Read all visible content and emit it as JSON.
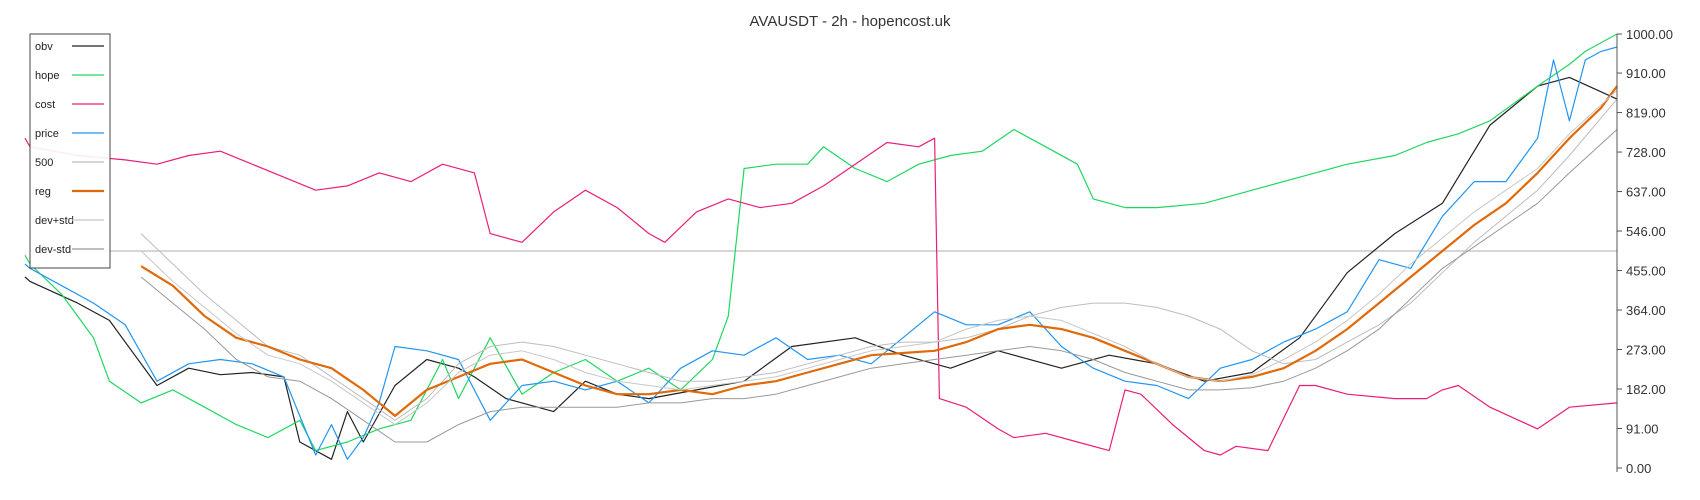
{
  "chart_data": {
    "type": "line",
    "title": "AVAUSDT - 2h - hopencost.uk",
    "y_axis": {
      "position": "right",
      "ylim": [
        0,
        1000
      ],
      "ticks": [
        0,
        91,
        182,
        273,
        364,
        455,
        546,
        637,
        728,
        819,
        910,
        1000
      ],
      "tick_labels": [
        "0.00",
        "91.00",
        "182.00",
        "273.00",
        "364.00",
        "455.00",
        "546.00",
        "637.00",
        "728.00",
        "819.00",
        "910.00",
        "1000.00"
      ]
    },
    "xlim": [
      0,
      100
    ],
    "reference_line": {
      "y": 500,
      "color": "#bdbdbd"
    },
    "legend": {
      "placement": "top-left"
    },
    "series": [
      {
        "name": "obv",
        "color": "#222222",
        "width": 1.2,
        "x": [
          -2,
          0,
          3,
          5,
          8,
          10,
          12,
          14,
          16,
          17,
          19,
          20,
          21,
          23,
          25,
          27,
          28,
          30,
          33,
          35,
          37,
          39,
          42,
          45,
          48,
          52,
          55,
          58,
          61,
          65,
          68,
          71,
          74,
          77,
          80,
          83,
          86,
          89,
          92,
          95,
          97,
          100
        ],
        "y": [
          440,
          430,
          380,
          340,
          190,
          230,
          215,
          220,
          210,
          60,
          20,
          130,
          60,
          190,
          250,
          230,
          210,
          160,
          130,
          200,
          170,
          160,
          180,
          200,
          280,
          300,
          260,
          230,
          270,
          230,
          260,
          240,
          200,
          220,
          300,
          450,
          540,
          610,
          790,
          880,
          900,
          850
        ]
      },
      {
        "name": "hope",
        "color": "#1ed760",
        "width": 1.2,
        "x": [
          -2,
          0,
          2,
          4,
          5,
          7,
          9,
          11,
          13,
          15,
          17,
          18,
          20,
          22,
          24,
          26,
          27,
          29,
          31,
          33,
          35,
          37,
          39,
          41,
          43,
          44,
          45,
          47,
          49,
          50,
          52,
          54,
          56,
          58,
          60,
          62,
          64,
          66,
          67,
          69,
          71,
          74,
          77,
          80,
          83,
          86,
          88,
          90,
          92,
          95,
          97,
          98,
          100
        ],
        "y": [
          490,
          470,
          400,
          300,
          200,
          150,
          180,
          140,
          100,
          70,
          110,
          40,
          60,
          90,
          110,
          250,
          160,
          300,
          170,
          220,
          250,
          200,
          230,
          180,
          250,
          350,
          690,
          700,
          700,
          740,
          690,
          660,
          700,
          720,
          730,
          780,
          740,
          700,
          620,
          600,
          600,
          610,
          640,
          670,
          700,
          720,
          750,
          770,
          800,
          880,
          930,
          960,
          1000
        ]
      },
      {
        "name": "cost",
        "color": "#e91e7a",
        "width": 1.2,
        "x": [
          -2,
          0,
          3,
          6,
          8,
          10,
          12,
          14,
          16,
          18,
          20,
          22,
          24,
          26,
          28,
          29,
          31,
          33,
          35,
          37,
          39,
          40,
          42,
          44,
          46,
          48,
          50,
          52,
          54,
          56,
          57,
          57.3,
          59,
          61,
          62,
          64,
          66,
          68,
          69,
          70,
          72,
          74,
          75,
          76,
          78,
          80,
          81,
          83,
          86,
          88,
          89,
          90,
          92,
          95,
          97,
          100
        ],
        "y": [
          760,
          740,
          720,
          710,
          700,
          720,
          730,
          700,
          670,
          640,
          650,
          680,
          660,
          700,
          680,
          540,
          520,
          590,
          640,
          600,
          540,
          520,
          590,
          620,
          600,
          610,
          650,
          700,
          750,
          740,
          760,
          160,
          140,
          90,
          70,
          80,
          60,
          40,
          180,
          170,
          100,
          40,
          30,
          50,
          40,
          190,
          190,
          170,
          160,
          160,
          180,
          190,
          140,
          90,
          140,
          150
        ]
      },
      {
        "name": "price",
        "color": "#2196f3",
        "width": 1.2,
        "x": [
          -2,
          0,
          2,
          4,
          6,
          8,
          10,
          12,
          14,
          16,
          18,
          19,
          20,
          21,
          22,
          23,
          25,
          27,
          29,
          31,
          33,
          35,
          37,
          39,
          41,
          43,
          45,
          47,
          49,
          51,
          53,
          55,
          57,
          59,
          61,
          63,
          65,
          67,
          69,
          71,
          73,
          75,
          77,
          79,
          81,
          83,
          85,
          87,
          89,
          91,
          93,
          95,
          96,
          97,
          98,
          99,
          100
        ],
        "y": [
          470,
          460,
          420,
          380,
          330,
          200,
          240,
          250,
          240,
          210,
          30,
          100,
          20,
          70,
          150,
          280,
          270,
          250,
          110,
          190,
          200,
          180,
          200,
          150,
          230,
          270,
          260,
          300,
          250,
          260,
          240,
          300,
          360,
          330,
          330,
          360,
          280,
          230,
          200,
          190,
          160,
          230,
          250,
          290,
          320,
          360,
          480,
          460,
          580,
          660,
          660,
          760,
          940,
          800,
          940,
          960,
          970
        ]
      },
      {
        "name": "500",
        "color": "#bdbdbd",
        "width": 1.0,
        "x": [
          7,
          9,
          11,
          13,
          15,
          17,
          19,
          21,
          23,
          25,
          27,
          29,
          31,
          33,
          35,
          37,
          39,
          41,
          43,
          45,
          47,
          49,
          51,
          53,
          55,
          57,
          59,
          61,
          63,
          65,
          67,
          69,
          71,
          73,
          75,
          77,
          79,
          81,
          83,
          85,
          87,
          89,
          91,
          93,
          95,
          97,
          100
        ],
        "y": [
          540,
          470,
          400,
          340,
          280,
          260,
          210,
          160,
          110,
          160,
          240,
          280,
          290,
          280,
          260,
          240,
          220,
          200,
          200,
          210,
          220,
          240,
          260,
          280,
          290,
          290,
          300,
          320,
          350,
          370,
          380,
          380,
          370,
          350,
          320,
          270,
          240,
          250,
          290,
          330,
          380,
          450,
          520,
          580,
          640,
          720,
          850
        ]
      },
      {
        "name": "reg",
        "color": "#e06a0a",
        "width": 2.2,
        "x": [
          7,
          9,
          11,
          13,
          15,
          17,
          19,
          21,
          23,
          25,
          27,
          29,
          31,
          33,
          35,
          37,
          39,
          41,
          43,
          45,
          47,
          49,
          51,
          53,
          55,
          57,
          59,
          61,
          63,
          65,
          67,
          69,
          71,
          73,
          75,
          77,
          79,
          81,
          83,
          85,
          87,
          89,
          91,
          93,
          95,
          97,
          99,
          100
        ],
        "y": [
          465,
          420,
          350,
          300,
          280,
          250,
          230,
          180,
          120,
          180,
          210,
          240,
          250,
          220,
          190,
          170,
          170,
          180,
          170,
          190,
          200,
          220,
          240,
          260,
          265,
          270,
          290,
          320,
          330,
          320,
          300,
          270,
          240,
          210,
          200,
          210,
          230,
          270,
          320,
          380,
          440,
          500,
          560,
          610,
          680,
          760,
          830,
          880
        ]
      },
      {
        "name": "dev+std",
        "color": "#c8c8c8",
        "width": 1.0,
        "x": [
          7,
          9,
          11,
          13,
          15,
          17,
          19,
          21,
          23,
          25,
          27,
          29,
          31,
          33,
          35,
          37,
          39,
          41,
          43,
          45,
          47,
          49,
          51,
          53,
          55,
          57,
          59,
          61,
          63,
          65,
          67,
          69,
          71,
          73,
          75,
          77,
          79,
          81,
          83,
          85,
          87,
          89,
          91,
          93,
          95,
          97,
          100
        ],
        "y": [
          500,
          430,
          370,
          310,
          260,
          240,
          200,
          150,
          100,
          150,
          220,
          260,
          270,
          250,
          220,
          200,
          190,
          180,
          190,
          200,
          210,
          230,
          250,
          270,
          280,
          290,
          320,
          340,
          350,
          340,
          310,
          280,
          240,
          210,
          200,
          215,
          250,
          290,
          340,
          400,
          470,
          530,
          590,
          640,
          690,
          770,
          870
        ]
      },
      {
        "name": "dev-std",
        "color": "#999999",
        "width": 1.0,
        "x": [
          7,
          9,
          11,
          13,
          15,
          17,
          19,
          21,
          23,
          25,
          27,
          29,
          31,
          33,
          35,
          37,
          39,
          41,
          43,
          45,
          47,
          49,
          51,
          53,
          55,
          57,
          59,
          61,
          63,
          65,
          67,
          69,
          71,
          73,
          75,
          77,
          79,
          81,
          83,
          85,
          87,
          89,
          91,
          93,
          95,
          97,
          100
        ],
        "y": [
          440,
          380,
          320,
          250,
          210,
          200,
          160,
          110,
          60,
          60,
          100,
          130,
          140,
          140,
          140,
          140,
          150,
          150,
          160,
          160,
          170,
          190,
          210,
          230,
          240,
          250,
          260,
          270,
          280,
          270,
          250,
          220,
          200,
          180,
          180,
          185,
          200,
          230,
          270,
          320,
          390,
          460,
          510,
          560,
          610,
          680,
          780
        ]
      }
    ]
  }
}
